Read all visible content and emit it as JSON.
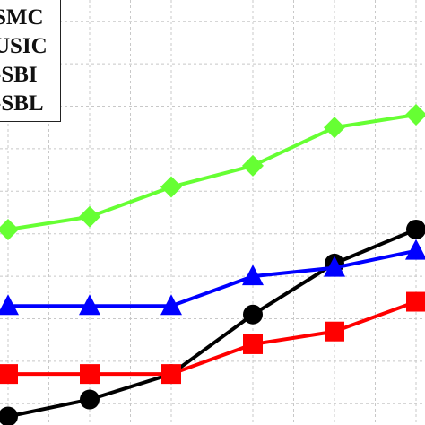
{
  "chart_data": {
    "type": "line",
    "title": "",
    "xlabel": "",
    "ylabel": "",
    "grid": true,
    "legend_position": "top-left",
    "x": [
      1,
      2,
      3,
      4,
      5,
      6
    ],
    "xlim": [
      0.95,
      6.2
    ],
    "ylim": [
      0,
      10
    ],
    "series": [
      {
        "name": "SMC",
        "legend_text": "SMC",
        "color": "#000000",
        "marker": "circle",
        "values": [
          0.2,
          0.6,
          1.2,
          2.6,
          3.8,
          4.6
        ]
      },
      {
        "name": "MUSIC",
        "legend_text": "USIC",
        "color": "#ff0000",
        "marker": "square",
        "values": [
          1.2,
          1.2,
          1.2,
          1.9,
          2.2,
          2.9
        ]
      },
      {
        "name": "SBI",
        "legend_text": "-SBI",
        "color": "#0000ff",
        "marker": "triangle",
        "values": [
          2.8,
          2.8,
          2.8,
          3.5,
          3.7,
          4.1
        ]
      },
      {
        "name": "SBL",
        "legend_text": "-SBL",
        "color": "#66ff33",
        "marker": "diamond",
        "values": [
          4.6,
          4.9,
          5.6,
          6.1,
          7.0,
          7.3
        ]
      }
    ]
  }
}
